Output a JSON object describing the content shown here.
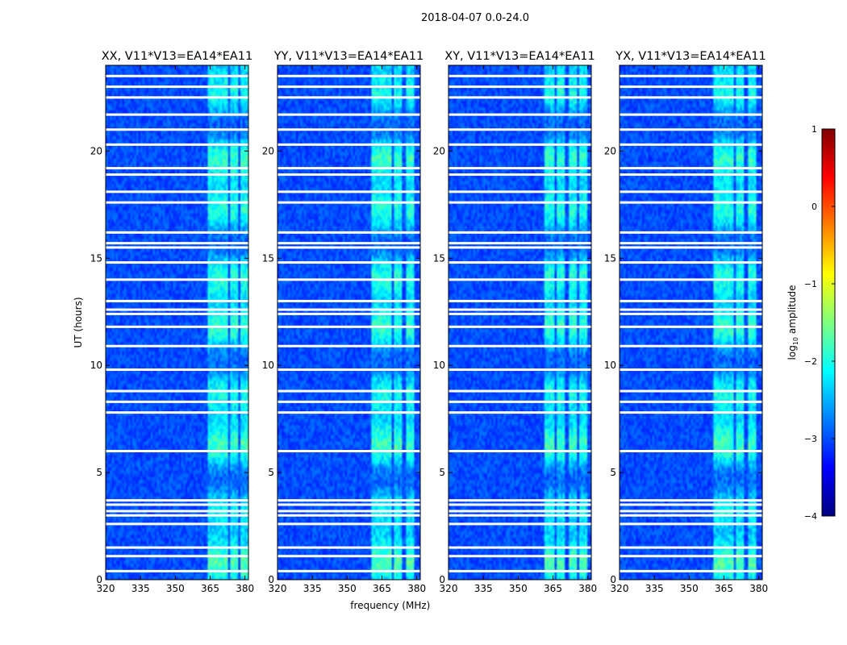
{
  "suptitle": "2018-04-07 0.0-24.0",
  "colors": {
    "background": "#ffffff",
    "axis": "#000000",
    "flag_row": "#ffffff",
    "jet": [
      "#00007f",
      "#0000ff",
      "#007fff",
      "#00ffff",
      "#7fff7f",
      "#ffff00",
      "#ff7f00",
      "#ff0000",
      "#7f0000"
    ]
  },
  "chart_data": [
    {
      "type": "heatmap",
      "title": "XX, V11*V13=EA14*EA11",
      "xlabel": "",
      "ylabel": "UT (hours)",
      "xlim": [
        320,
        381.5
      ],
      "ylim": [
        0,
        24
      ],
      "xticks": [
        320,
        335,
        350,
        365,
        380
      ],
      "yticks": [
        0,
        5,
        10,
        15,
        20
      ],
      "value": "log10 amplitude",
      "background_level": -3.0,
      "rfi_bands_mhz": [
        [
          363.5,
          368
        ],
        [
          368.5,
          372.5
        ],
        [
          373.5,
          377.5
        ],
        [
          378,
          381.5
        ]
      ],
      "rfi_level": -1.8,
      "flagged_ut_hours": [
        0.4,
        1.1,
        1.5,
        2.6,
        3.0,
        3.2,
        3.5,
        3.7,
        6.0,
        7.8,
        8.3,
        8.8,
        9.8,
        10.9,
        11.8,
        12.4,
        12.6,
        13.0,
        14.0,
        14.8,
        15.5,
        15.7,
        16.2,
        17.6,
        18.1,
        18.9,
        19.2,
        20.3,
        21.0,
        21.7,
        22.5,
        23.0,
        23.5
      ]
    },
    {
      "type": "heatmap",
      "title": "YY, V11*V13=EA14*EA11",
      "xlabel": "frequency (MHz)",
      "ylabel": "",
      "xlim": [
        320,
        381.5
      ],
      "ylim": [
        0,
        24
      ],
      "xticks": [
        320,
        335,
        350,
        365,
        380
      ],
      "yticks": [
        0,
        5,
        10,
        15,
        20
      ],
      "value": "log10 amplitude",
      "background_level": -3.0,
      "rfi_bands_mhz": [
        [
          360.5,
          364.5
        ],
        [
          365,
          369
        ],
        [
          370,
          374
        ],
        [
          375,
          379
        ]
      ],
      "rfi_level": -1.8,
      "flagged_ut_hours": [
        0.4,
        1.1,
        1.5,
        2.6,
        3.0,
        3.2,
        3.5,
        3.7,
        6.0,
        7.8,
        8.3,
        8.8,
        9.8,
        10.9,
        11.8,
        12.4,
        12.6,
        13.0,
        14.0,
        14.8,
        15.5,
        15.7,
        16.2,
        17.6,
        18.1,
        18.9,
        19.2,
        20.3,
        21.0,
        21.7,
        22.5,
        23.0,
        23.5
      ]
    },
    {
      "type": "heatmap",
      "title": "XY, V11*V13=EA14*EA11",
      "xlabel": "",
      "ylabel": "",
      "xlim": [
        320,
        381.5
      ],
      "ylim": [
        0,
        24
      ],
      "xticks": [
        320,
        335,
        350,
        365,
        380
      ],
      "yticks": [
        0,
        5,
        10,
        15,
        20
      ],
      "value": "log10 amplitude",
      "background_level": -3.0,
      "rfi_bands_mhz": [
        [
          361.5,
          366
        ],
        [
          366.5,
          370.5
        ],
        [
          371.5,
          375.5
        ],
        [
          376,
          380
        ]
      ],
      "rfi_level": -1.8,
      "flagged_ut_hours": [
        0.4,
        1.1,
        1.5,
        2.6,
        3.0,
        3.2,
        3.5,
        3.7,
        6.0,
        7.8,
        8.3,
        8.8,
        9.8,
        10.9,
        11.8,
        12.4,
        12.6,
        13.0,
        14.0,
        14.8,
        15.5,
        15.7,
        16.2,
        17.6,
        18.1,
        18.9,
        19.2,
        20.3,
        21.0,
        21.7,
        22.5,
        23.0,
        23.5
      ]
    },
    {
      "type": "heatmap",
      "title": "YX, V11*V13=EA14*EA11",
      "xlabel": "",
      "ylabel": "",
      "xlim": [
        320,
        381.5
      ],
      "ylim": [
        0,
        24
      ],
      "xticks": [
        320,
        335,
        350,
        365,
        380
      ],
      "yticks": [
        0,
        5,
        10,
        15,
        20
      ],
      "value": "log10 amplitude",
      "background_level": -3.0,
      "rfi_bands_mhz": [
        [
          360.5,
          364.5
        ],
        [
          365,
          369
        ],
        [
          370,
          374
        ],
        [
          375,
          379
        ]
      ],
      "rfi_level": -1.8,
      "flagged_ut_hours": [
        0.4,
        1.1,
        1.5,
        2.6,
        3.0,
        3.2,
        3.5,
        3.7,
        6.0,
        7.8,
        8.3,
        8.8,
        9.8,
        10.9,
        11.8,
        12.4,
        12.6,
        13.0,
        14.0,
        14.8,
        15.5,
        15.7,
        16.2,
        17.6,
        18.1,
        18.9,
        19.2,
        20.3,
        21.0,
        21.7,
        22.5,
        23.0,
        23.5
      ]
    }
  ],
  "colorbar": {
    "label_prefix": "log",
    "label_sub": "10",
    "label_suffix": " amplitude",
    "range": [
      -4,
      1
    ],
    "ticks": [
      1,
      0,
      -1,
      -2,
      -3,
      -4
    ],
    "tick_labels": [
      "1",
      "0",
      "−1",
      "−2",
      "−3",
      "−4"
    ]
  }
}
